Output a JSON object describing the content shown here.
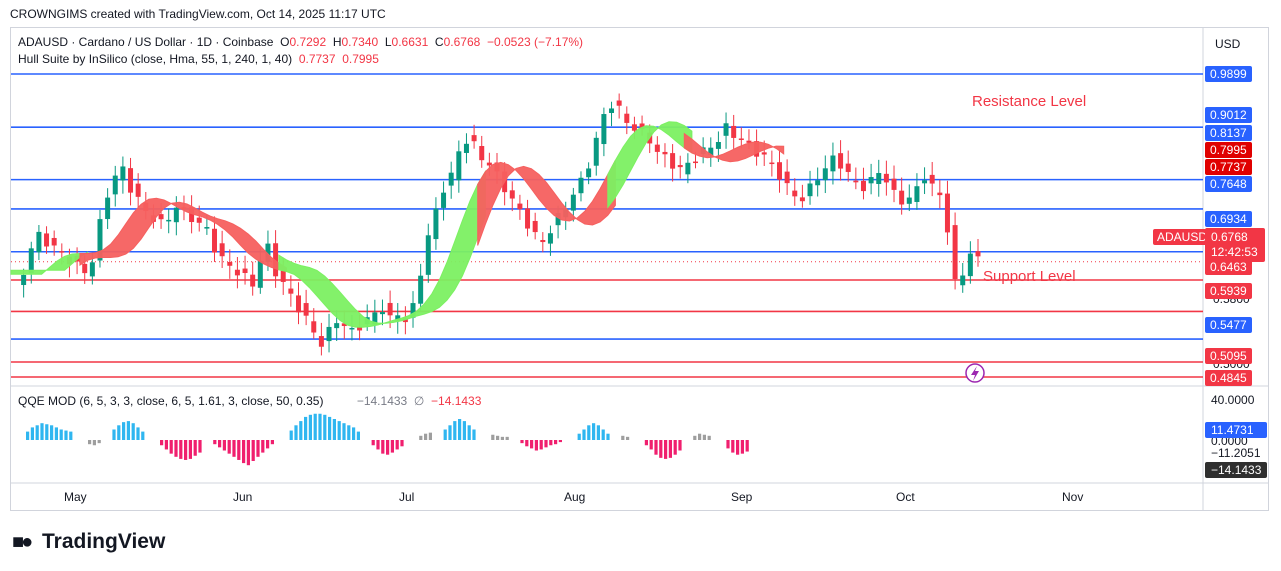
{
  "caption": "CROWNGIMS created with TradingView.com, Oct 14, 2025 11:17 UTC",
  "header": {
    "symbol": "ADAUSD · Cardano / US Dollar · 1D · Coinbase",
    "o_label": "O",
    "o": "0.7292",
    "h_label": "H",
    "h": "0.7340",
    "l_label": "L",
    "l": "0.6631",
    "c_label": "C",
    "c": "0.6768",
    "change": "−0.0523 (−7.17%)",
    "indicator": "Hull Suite by InSilico (close, Hma, 55, 1, 240, 1, 40)",
    "ind_v1": "0.7737",
    "ind_v2": "0.7995"
  },
  "annotations": {
    "resistance": "Resistance Level",
    "support": "Support Level"
  },
  "currency": "USD",
  "price_tags": {
    "l0989": "0.9899",
    "l0901": "0.9012",
    "l0813": "0.8137",
    "l0799": "0.7995",
    "l0773": "0.7737",
    "l0764": "0.7648",
    "l0693": "0.6934",
    "l0646": "0.6463",
    "l0593": "0.5939",
    "l0547": "0.5477",
    "l0509": "0.5095",
    "l0484": "0.4845"
  },
  "partial_labels": {
    "p0580": "0.5800",
    "p0500": "0.5000"
  },
  "current": {
    "ticker": "ADAUSD",
    "price": "0.6768",
    "countdown": "12:42:53"
  },
  "months": [
    "May",
    "Jun",
    "Jul",
    "Aug",
    "Sep",
    "Oct",
    "Nov"
  ],
  "qqe": {
    "header": "QQE MOD (6, 5, 3, 3, close, 6, 5, 1.61, 3, close, 50, 0.35)",
    "v1": "−14.1433",
    "sym": "∅",
    "v2": "−14.1433",
    "axis_top": "40.0000",
    "axis_zero": "0.0000",
    "tag_blue": "11.4731",
    "tag_gray": "−11.2051",
    "tag_dark": "−14.1433"
  },
  "brand": "TradingView",
  "colors": {
    "up": "#089981",
    "down": "#f23645",
    "level": "#2962ff",
    "support": "#f23645",
    "hull_up": "#7cf062",
    "hull_down": "#f5605f"
  },
  "chart_data": {
    "type": "candlestick",
    "title": "ADAUSD · Cardano / US Dollar · 1D · Coinbase",
    "ylim": [
      0.47,
      1.0
    ],
    "levels": [
      {
        "value": 0.9899,
        "color": "#2962ff"
      },
      {
        "value": 0.9012,
        "color": "#2962ff"
      },
      {
        "value": 0.8137,
        "color": "#2962ff"
      },
      {
        "value": 0.7648,
        "color": "#2962ff"
      },
      {
        "value": 0.6934,
        "color": "#2962ff"
      },
      {
        "value": 0.6463,
        "color": "#f23645"
      },
      {
        "value": 0.5939,
        "color": "#f23645"
      },
      {
        "value": 0.5477,
        "color": "#2962ff"
      },
      {
        "value": 0.5095,
        "color": "#f23645"
      },
      {
        "value": 0.4845,
        "color": "#f23645"
      }
    ],
    "x_months": [
      "May",
      "Jun",
      "Jul",
      "Aug",
      "Sep",
      "Oct",
      "Nov"
    ],
    "close_path": [
      0.63,
      0.66,
      0.7,
      0.72,
      0.71,
      0.7,
      0.69,
      0.68,
      0.67,
      0.66,
      0.68,
      0.74,
      0.79,
      0.82,
      0.83,
      0.8,
      0.78,
      0.76,
      0.75,
      0.74,
      0.75,
      0.77,
      0.76,
      0.75,
      0.74,
      0.73,
      0.7,
      0.68,
      0.67,
      0.66,
      0.65,
      0.64,
      0.68,
      0.7,
      0.66,
      0.64,
      0.62,
      0.6,
      0.58,
      0.56,
      0.54,
      0.56,
      0.58,
      0.57,
      0.56,
      0.57,
      0.58,
      0.59,
      0.6,
      0.58,
      0.59,
      0.58,
      0.6,
      0.66,
      0.72,
      0.76,
      0.8,
      0.82,
      0.86,
      0.88,
      0.87,
      0.85,
      0.84,
      0.82,
      0.8,
      0.78,
      0.76,
      0.74,
      0.72,
      0.71,
      0.73,
      0.75,
      0.77,
      0.79,
      0.81,
      0.84,
      0.88,
      0.92,
      0.94,
      0.93,
      0.91,
      0.9,
      0.89,
      0.88,
      0.86,
      0.85,
      0.84,
      0.83,
      0.84,
      0.85,
      0.86,
      0.87,
      0.88,
      0.9,
      0.89,
      0.88,
      0.87,
      0.86,
      0.85,
      0.84,
      0.82,
      0.8,
      0.79,
      0.78,
      0.8,
      0.82,
      0.83,
      0.85,
      0.84,
      0.82,
      0.81,
      0.8,
      0.81,
      0.83,
      0.81,
      0.79,
      0.78,
      0.78,
      0.8,
      0.82,
      0.8,
      0.79,
      0.73,
      0.64,
      0.66,
      0.69,
      0.68
    ],
    "hull_bands": [
      {
        "from": 0,
        "to": 0.077,
        "trend": "up"
      },
      {
        "from": 0.077,
        "to": 0.285,
        "trend": "down"
      },
      {
        "from": 0.285,
        "to": 0.485,
        "trend": "up"
      },
      {
        "from": 0.485,
        "to": 0.62,
        "trend": "down"
      },
      {
        "from": 0.62,
        "to": 0.706,
        "trend": "up"
      },
      {
        "from": 0.706,
        "to": 0.8,
        "trend": "down"
      }
    ],
    "qqe_histogram": [
      {
        "segment": "May",
        "values": [
          8,
          12,
          14,
          16,
          15,
          14,
          12,
          10,
          9,
          8
        ],
        "color": "#2fb6f0"
      },
      {
        "segment": "May-gray",
        "values": [
          -4,
          -5,
          -3
        ],
        "color": "#9e9e9e"
      },
      {
        "segment": "mid-May",
        "values": [
          10,
          14,
          17,
          18,
          16,
          12,
          8
        ],
        "color": "#2fb6f0"
      },
      {
        "segment": "late-May",
        "values": [
          -5,
          -9,
          -13,
          -16,
          -18,
          -19,
          -18,
          -15,
          -12
        ],
        "color": "#f01f6e"
      },
      {
        "segment": "June",
        "values": [
          -4,
          -7,
          -10,
          -13,
          -16,
          -19,
          -22,
          -24,
          -20,
          -16,
          -12,
          -8,
          -4
        ],
        "color": "#f01f6e"
      },
      {
        "segment": "July",
        "values": [
          9,
          14,
          18,
          22,
          24,
          25,
          25,
          24,
          22,
          20,
          18,
          16,
          14,
          12,
          8
        ],
        "color": "#2fb6f0"
      },
      {
        "segment": "Aug",
        "values": [
          -5,
          -9,
          -13,
          -14,
          -12,
          -9,
          -6
        ],
        "color": "#f01f6e"
      },
      {
        "segment": "Aug-gray",
        "values": [
          4,
          6,
          7
        ],
        "color": "#9e9e9e"
      },
      {
        "segment": "mid-Aug",
        "values": [
          10,
          14,
          18,
          20,
          18,
          14,
          10
        ],
        "color": "#2fb6f0"
      },
      {
        "segment": "Aug-late-gray",
        "values": [
          5,
          4,
          3,
          3
        ],
        "color": "#9e9e9e"
      },
      {
        "segment": "Sep",
        "values": [
          -3,
          -6,
          -8,
          -10,
          -9,
          -7,
          -5,
          -4,
          -2
        ],
        "color": "#f01f6e"
      },
      {
        "segment": "mid-Sep",
        "values": [
          6,
          10,
          14,
          16,
          14,
          10,
          6
        ],
        "color": "#2fb6f0"
      },
      {
        "segment": "Sep-gray",
        "values": [
          4,
          3
        ],
        "color": "#9e9e9e"
      },
      {
        "segment": "late-Sep",
        "values": [
          -5,
          -9,
          -14,
          -17,
          -18,
          -17,
          -14,
          -10
        ],
        "color": "#f01f6e"
      },
      {
        "segment": "Oct-gray",
        "values": [
          4,
          6,
          5,
          4
        ],
        "color": "#9e9e9e"
      },
      {
        "segment": "Oct",
        "values": [
          -8,
          -12,
          -14,
          -13,
          -11
        ],
        "color": "#f01f6e"
      }
    ]
  }
}
